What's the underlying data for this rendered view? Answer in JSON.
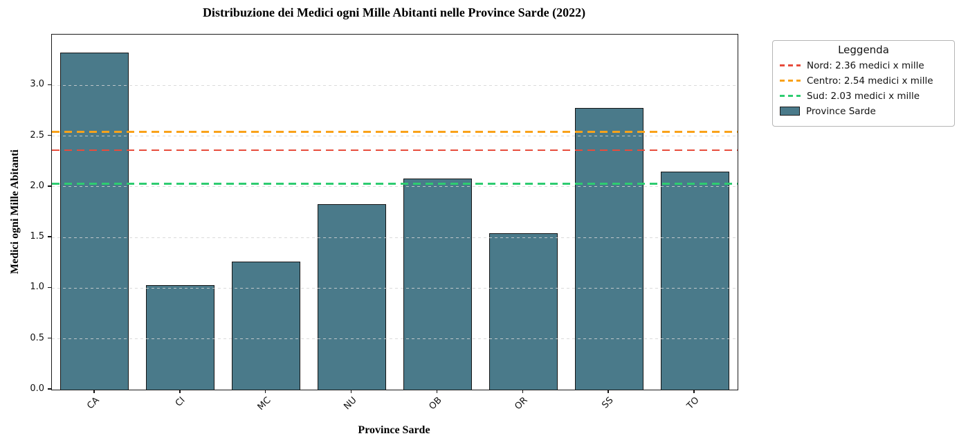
{
  "chart_data": {
    "type": "bar",
    "title": "Distribuzione dei Medici ogni Mille Abitanti nelle Province Sarde (2022)",
    "xlabel": "Province Sarde",
    "ylabel": "Medici ogni Mille Abitanti",
    "categories": [
      "CA",
      "CI",
      "MC",
      "NU",
      "OB",
      "OR",
      "SS",
      "TO"
    ],
    "values": [
      3.32,
      1.03,
      1.26,
      1.83,
      2.08,
      1.54,
      2.78,
      2.15
    ],
    "series_name": "Province Sarde",
    "ylim": [
      0,
      3.5
    ],
    "ytick_labels": [
      "0.0",
      "0.5",
      "1.0",
      "1.5",
      "2.0",
      "2.5",
      "3.0"
    ],
    "grid": "horizontal dashed",
    "colors": {
      "bar_fill": "#4a7a8a",
      "bar_edge": "#141414",
      "grid": "#d4d4d4",
      "spine": "#1a1a1a",
      "nord": "#e74c3c",
      "centro": "#f9a21a",
      "sud": "#2ecc71"
    },
    "reference_lines": [
      {
        "id": "nord",
        "label": "Nord: 2.36 medici x mille",
        "value": 2.36,
        "color": "#e74c3c",
        "style": "dashed"
      },
      {
        "id": "centro",
        "label": "Centro: 2.54 medici x mille",
        "value": 2.54,
        "color": "#f9a21a",
        "style": "dashed"
      },
      {
        "id": "sud",
        "label": "Sud: 2.03 medici x mille",
        "value": 2.03,
        "color": "#2ecc71",
        "style": "dashed"
      }
    ],
    "legend": {
      "title": "Leggenda",
      "position": "outside upper right",
      "entries": [
        {
          "swatch": "dashed-line",
          "color": "#e74c3c",
          "label": "Nord: 2.36 medici x mille"
        },
        {
          "swatch": "dashed-line",
          "color": "#f9a21a",
          "label": "Centro: 2.54 medici x mille"
        },
        {
          "swatch": "dashed-line",
          "color": "#2ecc71",
          "label": "Sud: 2.03 medici x mille"
        },
        {
          "swatch": "patch",
          "color": "#4a7a8a",
          "label": "Province Sarde"
        }
      ]
    }
  }
}
